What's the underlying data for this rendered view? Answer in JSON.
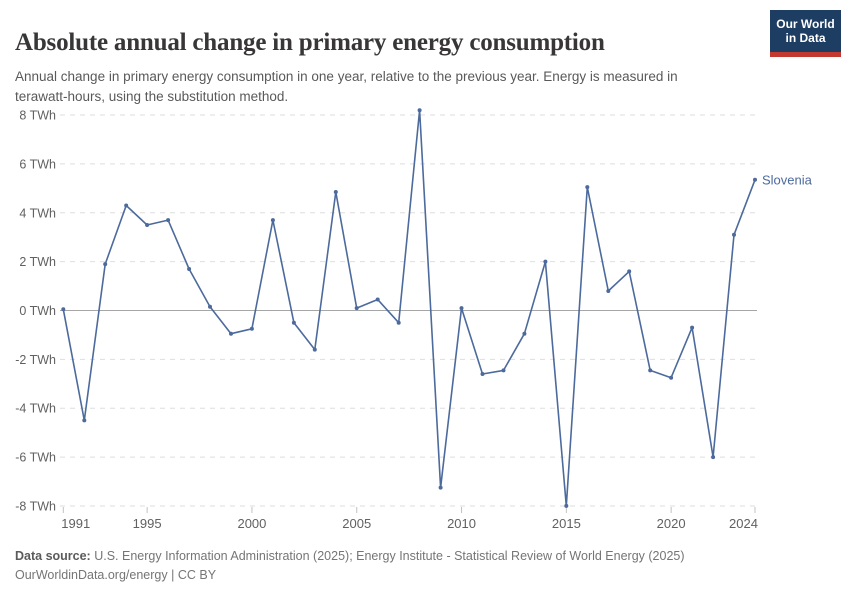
{
  "header": {
    "title": "Absolute annual change in primary energy consumption",
    "subtitle": "Annual change in primary energy consumption in one year, relative to the previous year. Energy is measured in terawatt-hours, using the substitution method.",
    "logo": {
      "line1": "Our World",
      "line2": "in Data"
    }
  },
  "chart_data": {
    "type": "line",
    "title": "Absolute annual change in primary energy consumption",
    "unit": "TWh",
    "x_range": [
      1991,
      2024
    ],
    "ylim": [
      -8,
      8
    ],
    "grid": true,
    "legend_position": "end-of-line-label",
    "series": [
      {
        "name": "Slovenia",
        "color": "#4c6a9c",
        "x": [
          1991,
          1992,
          1993,
          1994,
          1995,
          1996,
          1997,
          1998,
          1999,
          2000,
          2001,
          2002,
          2003,
          2004,
          2005,
          2006,
          2007,
          2008,
          2009,
          2010,
          2011,
          2012,
          2013,
          2014,
          2015,
          2016,
          2017,
          2018,
          2019,
          2020,
          2021,
          2022,
          2023,
          2024
        ],
        "values": [
          0.05,
          -4.5,
          1.9,
          4.3,
          3.5,
          3.7,
          1.7,
          0.15,
          -0.95,
          -0.75,
          3.7,
          -0.5,
          -1.6,
          4.85,
          0.1,
          0.45,
          -0.5,
          8.2,
          -7.25,
          0.1,
          -2.6,
          -2.45,
          -0.95,
          2.0,
          -8.0,
          5.05,
          0.8,
          1.6,
          -2.45,
          -2.75,
          -0.7,
          -6.0,
          3.1,
          5.35
        ]
      }
    ],
    "y_ticks": [
      {
        "value": 8,
        "label": "8 TWh"
      },
      {
        "value": 6,
        "label": "6 TWh"
      },
      {
        "value": 4,
        "label": "4 TWh"
      },
      {
        "value": 2,
        "label": "2 TWh"
      },
      {
        "value": 0,
        "label": "0 TWh"
      },
      {
        "value": -2,
        "label": "-2 TWh"
      },
      {
        "value": -4,
        "label": "-4 TWh"
      },
      {
        "value": -6,
        "label": "-6 TWh"
      },
      {
        "value": -8,
        "label": "-8 TWh"
      }
    ],
    "x_ticks": [
      {
        "value": 1991,
        "label": "1991"
      },
      {
        "value": 1995,
        "label": "1995"
      },
      {
        "value": 2000,
        "label": "2000"
      },
      {
        "value": 2005,
        "label": "2005"
      },
      {
        "value": 2010,
        "label": "2010"
      },
      {
        "value": 2015,
        "label": "2015"
      },
      {
        "value": 2020,
        "label": "2020"
      },
      {
        "value": 2024,
        "label": "2024"
      }
    ]
  },
  "footer": {
    "datasource_label": "Data source:",
    "datasource_text": " U.S. Energy Information Administration (2025); Energy Institute - Statistical Review of World Energy (2025)",
    "link": "OurWorldinData.org/energy",
    "separator": " | ",
    "license": "CC BY"
  },
  "colors": {
    "accent": "#4c6a9c",
    "grid": "#dedede",
    "zero_line": "#a6a6a6",
    "axis_text": "#616161",
    "tick_mark": "#c2c2c2",
    "title": "#383636",
    "subtitle": "#595959",
    "footer": "#757575",
    "logo_navy": "#1d3d63",
    "logo_red": "#c4392f"
  }
}
